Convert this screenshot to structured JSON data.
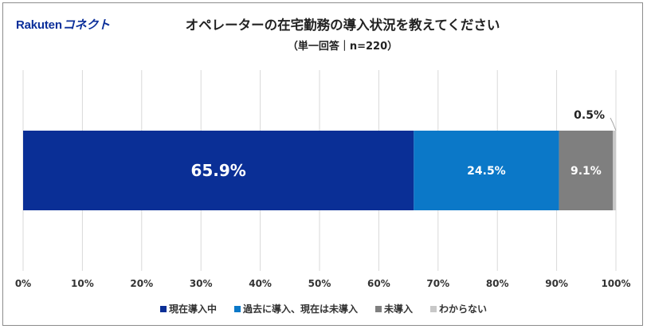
{
  "logo": {
    "brand": "Rakuten",
    "product": "コネクト"
  },
  "chart_data": {
    "type": "bar",
    "orientation": "horizontal",
    "stacked": true,
    "title": "オペレーターの在宅勤務の導入状況を教えてください",
    "subtitle": "（単一回答｜n=220）",
    "xlim": [
      0,
      100
    ],
    "x_ticks": [
      0,
      10,
      20,
      30,
      40,
      50,
      60,
      70,
      80,
      90,
      100
    ],
    "x_tick_labels": [
      "0%",
      "10%",
      "20%",
      "30%",
      "40%",
      "50%",
      "60%",
      "70%",
      "80%",
      "90%",
      "100%"
    ],
    "grid": true,
    "legend_position": "bottom",
    "series": [
      {
        "name": "現在導入中",
        "value": 65.9,
        "label": "65.9%",
        "color": "#0a2f96"
      },
      {
        "name": "過去に導入、現在は未導入",
        "value": 24.5,
        "label": "24.5%",
        "color": "#0b78c8"
      },
      {
        "name": "未導入",
        "value": 9.1,
        "label": "9.1%",
        "color": "#7f7f7f"
      },
      {
        "name": "わからない",
        "value": 0.5,
        "label": "0.5%",
        "color": "#c8c8c8"
      }
    ]
  }
}
